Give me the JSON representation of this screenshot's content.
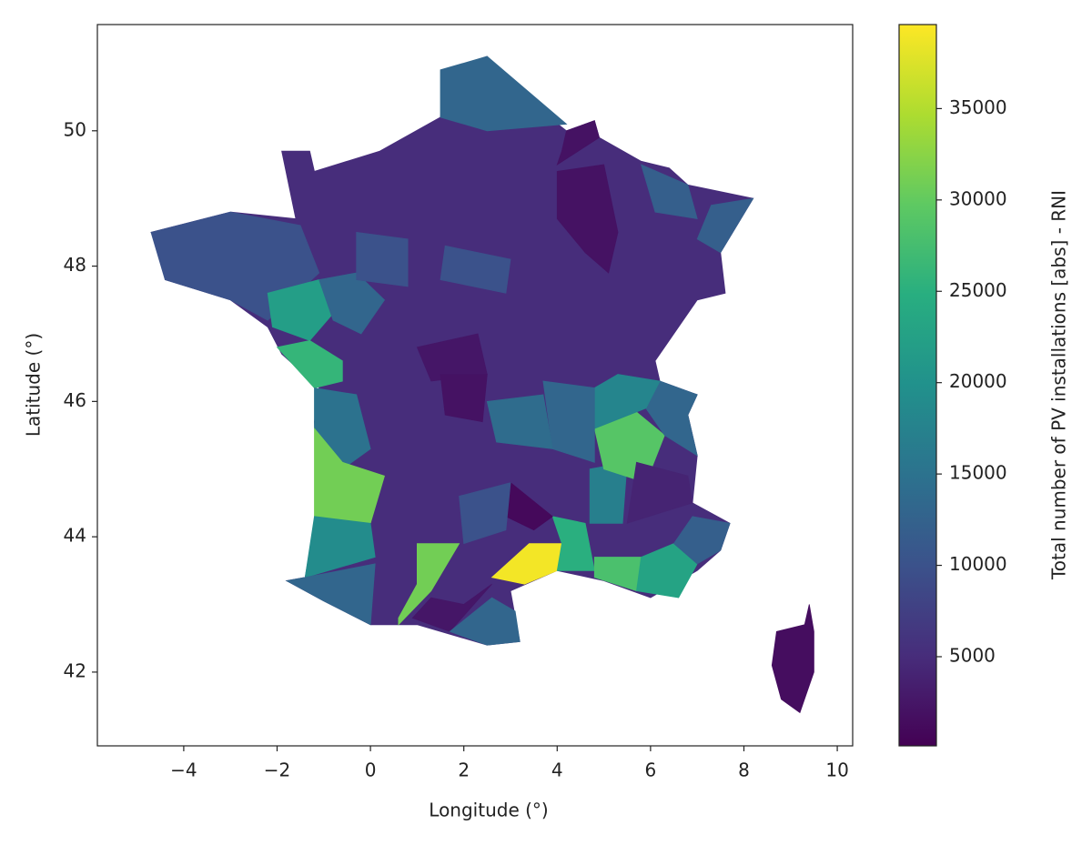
{
  "chart_data": {
    "type": "choropleth",
    "colormap": "viridis",
    "xlabel": "Longitude (°)",
    "ylabel": "Latitude (°)",
    "colorbar_label": "Total number of PV installations [abs] - RNI",
    "xlim": [
      -5.85,
      10.33
    ],
    "ylim": [
      40.91,
      51.57
    ],
    "xticks": [
      {
        "value": -4,
        "label": "−4"
      },
      {
        "value": -2,
        "label": "−2"
      },
      0,
      2,
      4,
      6,
      8,
      10
    ],
    "yticks": [
      42,
      44,
      46,
      48,
      50
    ],
    "clim": [
      120,
      39600
    ],
    "cticks": [
      5000,
      10000,
      15000,
      20000,
      25000,
      30000,
      35000
    ],
    "values": [
      5000,
      1500,
      13000,
      10000,
      22000,
      26000,
      15000,
      31000,
      19000,
      13000,
      31000,
      39000,
      25000,
      28000,
      23000,
      17000,
      29000,
      4000,
      12000,
      13000,
      18000,
      1000,
      10000,
      2500,
      13000,
      12000,
      2000,
      2000,
      12000,
      2500,
      2000,
      13000,
      14000,
      13000,
      10000,
      10000
    ]
  }
}
